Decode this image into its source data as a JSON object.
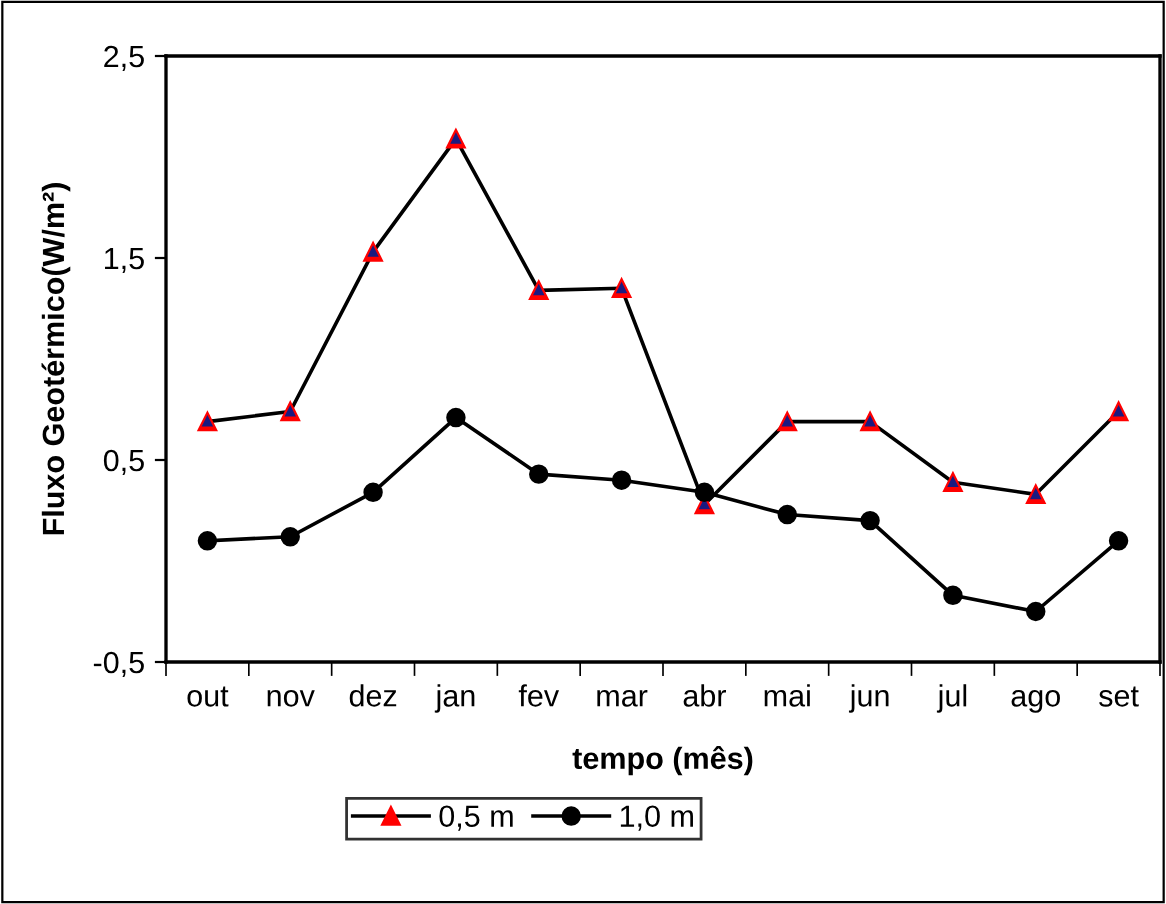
{
  "chart_data": {
    "type": "line",
    "xlabel": "tempo (mês)",
    "ylabel": "Fluxo Geotérmico(W/m²)",
    "categories": [
      "out",
      "nov",
      "dez",
      "jan",
      "fev",
      "mar",
      "abr",
      "mai",
      "jun",
      "jul",
      "ago",
      "set"
    ],
    "series": [
      {
        "name": "0,5 m",
        "color": "#000000",
        "marker": "triangle",
        "values": [
          0.69,
          0.74,
          1.53,
          2.09,
          1.34,
          1.35,
          0.28,
          0.69,
          0.69,
          0.39,
          0.33,
          0.74
        ]
      },
      {
        "name": "1,0 m",
        "color": "#000000",
        "marker": "circle",
        "values": [
          0.1,
          0.12,
          0.34,
          0.71,
          0.43,
          0.4,
          0.34,
          0.23,
          0.2,
          -0.17,
          -0.25,
          0.1
        ]
      }
    ],
    "ylim": [
      -0.5,
      2.5
    ],
    "yticks": [
      {
        "value": -0.5,
        "label": "-0,5"
      },
      {
        "value": 0.5,
        "label": "0,5"
      },
      {
        "value": 1.5,
        "label": "1,5"
      },
      {
        "value": 2.5,
        "label": "2,5"
      }
    ],
    "grid": false,
    "legend": "bottom",
    "line_style": "solid"
  }
}
